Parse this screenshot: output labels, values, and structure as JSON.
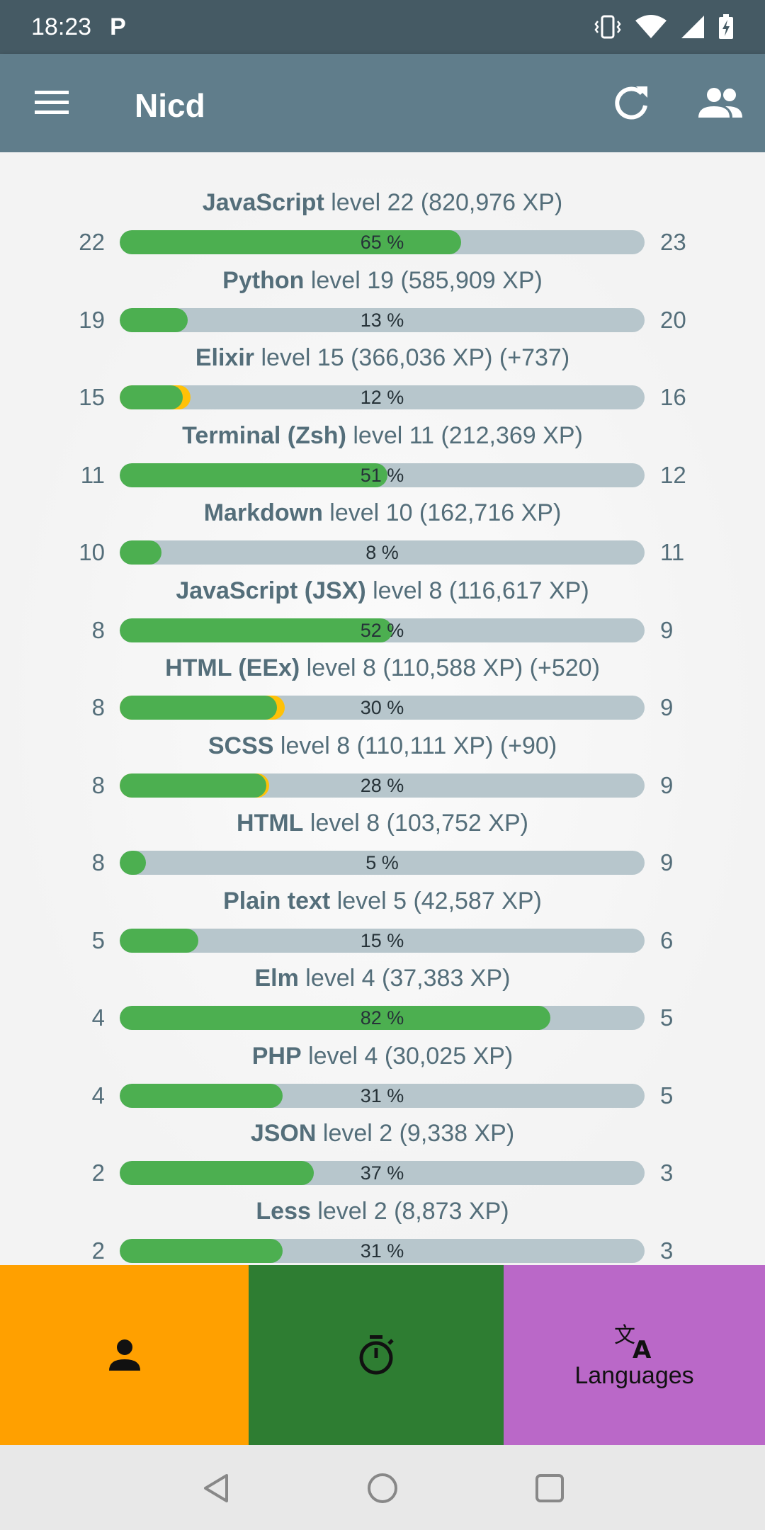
{
  "status": {
    "time": "18:23",
    "p_icon": "P"
  },
  "appbar": {
    "title": "Nicd",
    "menu_icon": "menu-icon",
    "refresh_icon": "refresh-icon",
    "people_icon": "people-icon"
  },
  "languages": [
    {
      "name": "JavaScript",
      "rest": " level 22 (820,976 XP)",
      "from": "22",
      "to": "23",
      "pct": "65 %",
      "fill": 0.65,
      "new": 0
    },
    {
      "name": "Python",
      "rest": " level 19 (585,909 XP)",
      "from": "19",
      "to": "20",
      "pct": "13 %",
      "fill": 0.13,
      "new": 0
    },
    {
      "name": "Elixir",
      "rest": " level 15 (366,036 XP) (+737)",
      "from": "15",
      "to": "16",
      "pct": "12 %",
      "fill": 0.12,
      "new": 0.015
    },
    {
      "name": "Terminal (Zsh)",
      "rest": " level 11 (212,369 XP)",
      "from": "11",
      "to": "12",
      "pct": "51 %",
      "fill": 0.51,
      "new": 0
    },
    {
      "name": "Markdown",
      "rest": " level 10 (162,716 XP)",
      "from": "10",
      "to": "11",
      "pct": "8 %",
      "fill": 0.08,
      "new": 0
    },
    {
      "name": "JavaScript (JSX)",
      "rest": " level 8 (116,617 XP)",
      "from": "8",
      "to": "9",
      "pct": "52 %",
      "fill": 0.52,
      "new": 0
    },
    {
      "name": "HTML (EEx)",
      "rest": " level 8 (110,588 XP) (+520)",
      "from": "8",
      "to": "9",
      "pct": "30 %",
      "fill": 0.3,
      "new": 0.015
    },
    {
      "name": "SCSS",
      "rest": " level 8 (110,111 XP) (+90)",
      "from": "8",
      "to": "9",
      "pct": "28 %",
      "fill": 0.28,
      "new": 0.005
    },
    {
      "name": "HTML",
      "rest": " level 8 (103,752 XP)",
      "from": "8",
      "to": "9",
      "pct": "5 %",
      "fill": 0.05,
      "new": 0
    },
    {
      "name": "Plain text",
      "rest": " level 5 (42,587 XP)",
      "from": "5",
      "to": "6",
      "pct": "15 %",
      "fill": 0.15,
      "new": 0
    },
    {
      "name": "Elm",
      "rest": " level 4 (37,383 XP)",
      "from": "4",
      "to": "5",
      "pct": "82 %",
      "fill": 0.82,
      "new": 0
    },
    {
      "name": "PHP",
      "rest": " level 4 (30,025 XP)",
      "from": "4",
      "to": "5",
      "pct": "31 %",
      "fill": 0.31,
      "new": 0
    },
    {
      "name": "JSON",
      "rest": " level 2 (9,338 XP)",
      "from": "2",
      "to": "3",
      "pct": "37 %",
      "fill": 0.37,
      "new": 0
    },
    {
      "name": "Less",
      "rest": " level 2 (8,873 XP)",
      "from": "2",
      "to": "3",
      "pct": "31 %",
      "fill": 0.31,
      "new": 0
    }
  ],
  "tabs": {
    "profile_icon": "person-icon",
    "timer_icon": "stopwatch-icon",
    "languages_icon": "translate-icon",
    "languages_label": "Languages"
  },
  "colors": {
    "statusbar": "#455a64",
    "appbar": "#607d8b",
    "fill": "#4caf50",
    "new_xp": "#ffc107",
    "track": "#b7c6cc",
    "tab_profile": "#ffa000",
    "tab_timer": "#2e7d32",
    "tab_languages": "#ba68c8"
  }
}
